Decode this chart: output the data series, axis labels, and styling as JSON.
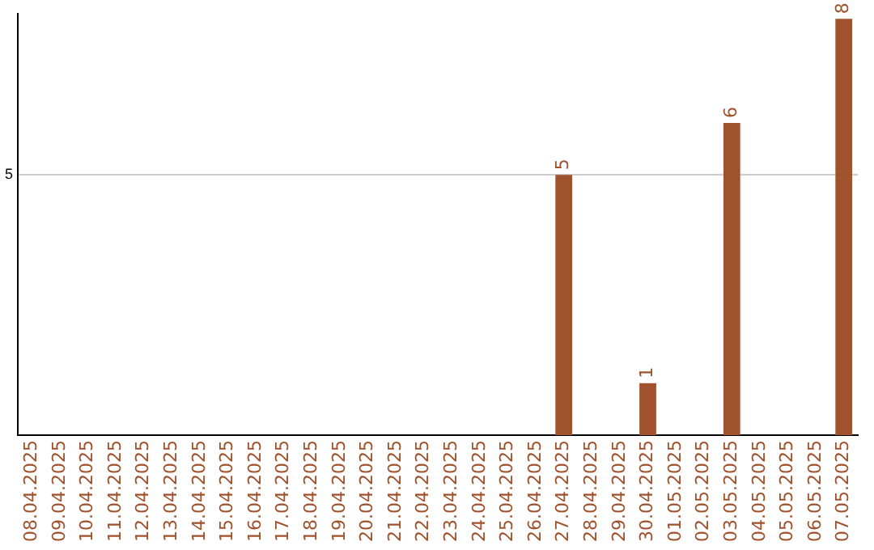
{
  "chart_data": {
    "type": "bar",
    "categories": [
      "08.04.2025",
      "09.04.2025",
      "10.04.2025",
      "11.04.2025",
      "12.04.2025",
      "13.04.2025",
      "14.04.2025",
      "15.04.2025",
      "16.04.2025",
      "17.04.2025",
      "18.04.2025",
      "19.04.2025",
      "20.04.2025",
      "21.04.2025",
      "22.04.2025",
      "23.04.2025",
      "24.04.2025",
      "25.04.2025",
      "26.04.2025",
      "27.04.2025",
      "28.04.2025",
      "29.04.2025",
      "30.04.2025",
      "01.05.2025",
      "02.05.2025",
      "03.05.2025",
      "04.05.2025",
      "05.05.2025",
      "06.05.2025",
      "07.05.2025"
    ],
    "values": [
      null,
      null,
      null,
      null,
      null,
      null,
      null,
      null,
      null,
      null,
      null,
      null,
      null,
      null,
      null,
      null,
      null,
      null,
      null,
      5,
      null,
      null,
      1,
      null,
      null,
      6,
      null,
      null,
      null,
      8
    ],
    "color": "#a0522d",
    "ylim": [
      0,
      8.1
    ],
    "yticks": [
      5
    ],
    "grid": "y",
    "data_labels": true,
    "legend": false
  }
}
